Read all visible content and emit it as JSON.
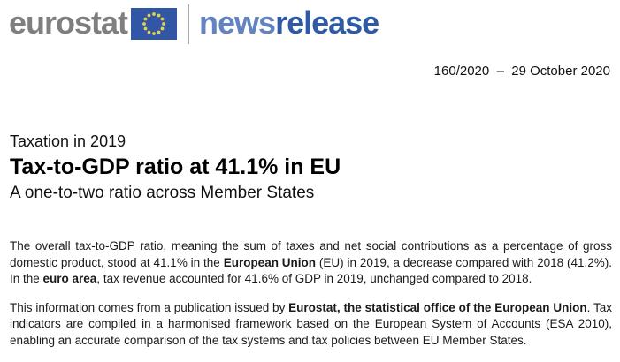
{
  "header": {
    "logo_text": "eurostat",
    "eu_flag_icon": "eu-flag",
    "brand": {
      "part_light": "news",
      "part_dark": "release"
    },
    "date_line": "160/2020  –  29 October 2020"
  },
  "colors": {
    "logo_gray": "#7f7f7f",
    "flag_blue": "#3156a5",
    "star_yellow": "#e2d245",
    "brand_light_blue": "#6383c1",
    "brand_dark_blue": "#2f5ba6",
    "text": "#1a1a1a"
  },
  "headline": {
    "kicker": "Taxation in 2019",
    "title": "Tax-to-GDP ratio at 41.1% in EU",
    "subtitle": "A one-to-two ratio across Member States"
  },
  "paragraphs": [
    {
      "segments": [
        {
          "text": "The overall tax-to-GDP ratio, meaning the sum of taxes and net social contributions as a percentage of gross domestic product, stood at 41.1% in the ",
          "name": "body-text"
        },
        {
          "text": "European Union",
          "bold": true,
          "name": "body-text-bold"
        },
        {
          "text": " (EU) in 2019, a decrease compared with 2018 (41.2%). In the ",
          "name": "body-text"
        },
        {
          "text": "euro area",
          "bold": true,
          "name": "body-text-bold"
        },
        {
          "text": ", tax revenue accounted for 41.6% of GDP in 2019, unchanged compared to 2018.",
          "name": "body-text"
        }
      ]
    },
    {
      "segments": [
        {
          "text": "This information comes from a ",
          "name": "body-text"
        },
        {
          "text": "publication",
          "underline": true,
          "name": "publication-link",
          "interactable": true
        },
        {
          "text": " issued by ",
          "name": "body-text"
        },
        {
          "text": "Eurostat, the statistical office of the European Union",
          "bold": true,
          "name": "body-text-bold"
        },
        {
          "text": ". Tax indicators are compiled in a harmonised framework based on the European System of Accounts (ESA 2010), enabling an accurate comparison of the tax systems and tax policies between EU Member States.",
          "name": "body-text"
        }
      ]
    }
  ]
}
